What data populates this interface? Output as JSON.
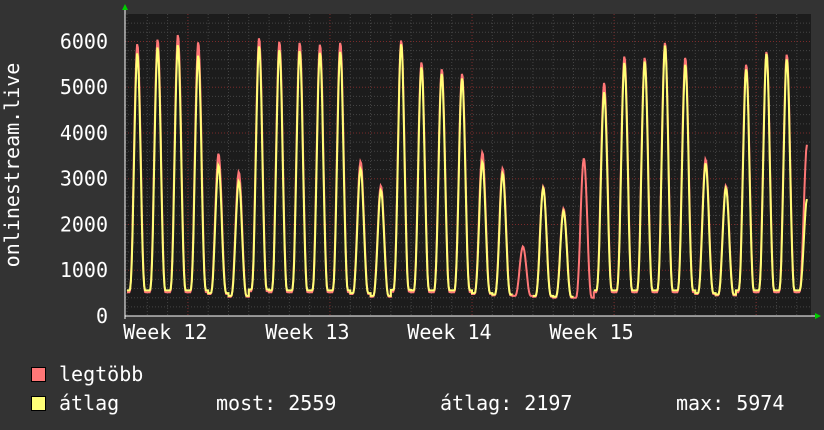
{
  "chart_data": {
    "type": "line",
    "ylabel": "onlinestream.live",
    "ylim": [
      0,
      6600
    ],
    "yticks": [
      0,
      1000,
      2000,
      3000,
      4000,
      5000,
      6000
    ],
    "xticks": [
      "Week 12",
      "Week 13",
      "Week 14",
      "Week 15"
    ],
    "grid": true,
    "background": "#1c1c1c",
    "series": [
      {
        "name": "legtöbb",
        "color": "#ff7777",
        "daily_peaks": [
          5950,
          6050,
          6150,
          5990,
          3550,
          3150,
          6080,
          6000,
          5980,
          5940,
          5980,
          3380,
          2850,
          6030,
          5550,
          5400,
          5300,
          3580,
          3230,
          1520,
          2830,
          2350,
          3450,
          5100,
          5680,
          5650,
          5980,
          5650,
          3430,
          2850,
          5500,
          5780,
          5720,
          3750
        ],
        "daily_lows": [
          520,
          520,
          520,
          520,
          480,
          420,
          540,
          520,
          520,
          520,
          520,
          480,
          420,
          530,
          520,
          520,
          520,
          480,
          450,
          440,
          420,
          400,
          400,
          520,
          520,
          520,
          520,
          520,
          480,
          450,
          520,
          520,
          520,
          520
        ]
      },
      {
        "name": "átlag",
        "color": "#ffff77",
        "daily_peaks": [
          5750,
          5880,
          5930,
          5700,
          3300,
          2950,
          5900,
          5820,
          5800,
          5760,
          5780,
          3220,
          2750,
          5950,
          5440,
          5300,
          5200,
          3370,
          3120,
          0,
          2800,
          2300,
          0,
          4900,
          5540,
          5570,
          5920,
          5500,
          3340,
          2800,
          5400,
          5740,
          5620,
          2559
        ],
        "daily_lows": [
          560,
          560,
          560,
          560,
          500,
          440,
          580,
          560,
          560,
          560,
          560,
          500,
          440,
          570,
          560,
          560,
          560,
          500,
          470,
          460,
          440,
          420,
          420,
          560,
          560,
          560,
          560,
          560,
          500,
          470,
          560,
          560,
          560,
          560
        ]
      }
    ]
  },
  "legend": [
    {
      "label": "legtöbb",
      "color": "#ff7777"
    },
    {
      "label": "átlag",
      "color": "#ffff77"
    }
  ],
  "stats": {
    "most": "most: 2559",
    "atlag": "átlag: 2197",
    "max": "max: 5974"
  }
}
